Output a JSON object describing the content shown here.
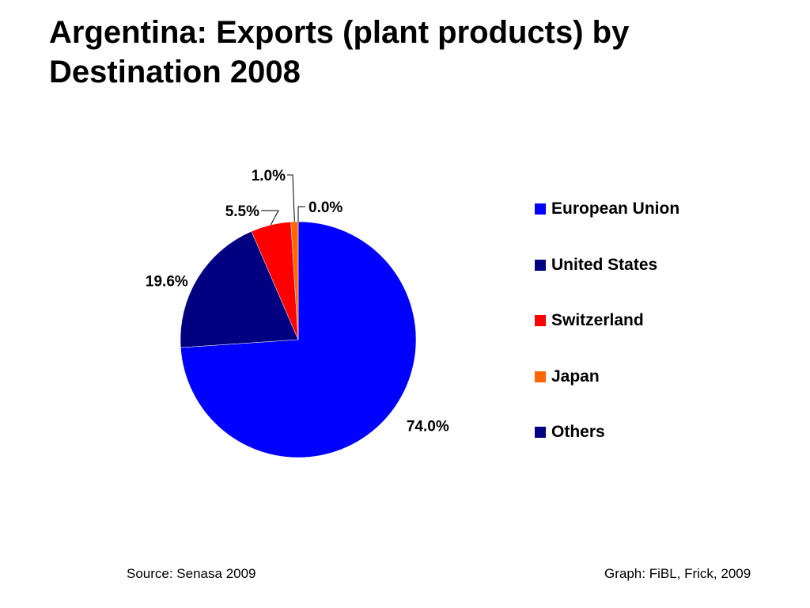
{
  "title": "Argentina: Exports (plant products) by Destination 2008",
  "footer": {
    "source": "Source: Senasa 2009",
    "credit": "Graph: FiBL, Frick, 2009"
  },
  "chart_data": {
    "type": "pie",
    "title": "Argentina: Exports (plant products) by Destination 2008",
    "legend_position": "right",
    "slices": [
      {
        "name": "European Union",
        "value": 74.0,
        "label": "74.0%",
        "color": "#0000FF"
      },
      {
        "name": "United States",
        "value": 19.6,
        "label": "19.6%",
        "color": "#000080"
      },
      {
        "name": "Switzerland",
        "value": 5.5,
        "label": "5.5%",
        "color": "#FF0000"
      },
      {
        "name": "Japan",
        "value": 1.0,
        "label": "1.0%",
        "color": "#FF6600"
      },
      {
        "name": "Others",
        "value": 0.0,
        "label": "0.0%",
        "color": "#000080"
      }
    ]
  }
}
